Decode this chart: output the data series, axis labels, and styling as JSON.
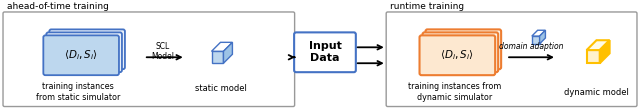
{
  "fig_width": 6.4,
  "fig_height": 1.11,
  "dpi": 100,
  "bg_color": "#ffffff",
  "blue_color": "#4472C4",
  "blue_light": "#9DC3E6",
  "blue_fill": "#BDD7EE",
  "orange_color": "#ED7D31",
  "yellow_color": "#FFC000",
  "yellow_light": "#FFE066",
  "yellow_fill": "#FFF2CC",
  "label_ahead": "ahead-of-time training",
  "label_runtime": "runtime training",
  "label_input": "Input\nData",
  "label_scl": "SCL\nModel",
  "label_static": "static model",
  "label_dynamic": "dynamic model",
  "label_domain": "domain adaption",
  "label_training_static": "training instances\nfrom static simulator",
  "label_training_dynamic": "training instances from\ndynamic simulator"
}
